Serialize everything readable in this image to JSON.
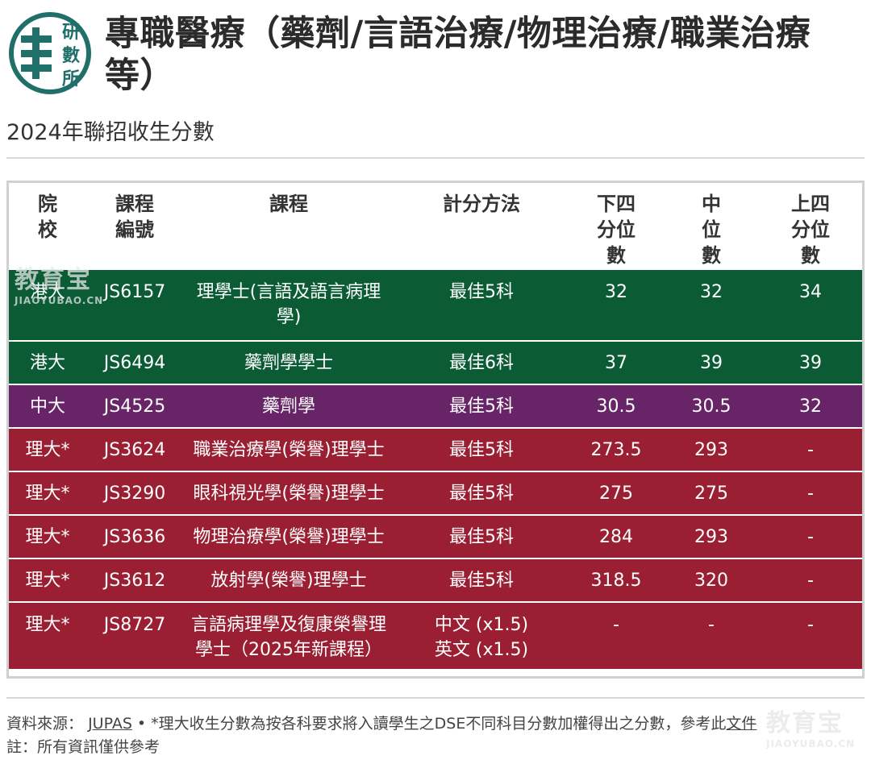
{
  "header": {
    "logo_text": [
      "研",
      "數",
      "所"
    ],
    "title": "專職醫療（藥劑/言語治療/物理治療/職業治療等）",
    "subtitle": "2024年聯招收生分數"
  },
  "table": {
    "columns": [
      "院\n校",
      "課程\n編號",
      "課程",
      "計分方法",
      "下四\n分位\n數",
      "中\n位\n數",
      "上四\n分位\n數"
    ],
    "rows": [
      {
        "theme": "green",
        "cells": [
          "港大",
          "JS6157",
          "理學士(言語及語言病理學)",
          "最佳5科",
          "32",
          "32",
          "34"
        ]
      },
      {
        "theme": "green",
        "cells": [
          "港大",
          "JS6494",
          "藥劑學學士",
          "最佳6科",
          "37",
          "39",
          "39"
        ]
      },
      {
        "theme": "purple",
        "cells": [
          "中大",
          "JS4525",
          "藥劑學",
          "最佳5科",
          "30.5",
          "30.5",
          "32"
        ]
      },
      {
        "theme": "red",
        "cells": [
          "理大*",
          "JS3624",
          "職業治療學(榮譽)理學士",
          "最佳5科",
          "273.5",
          "293",
          "-"
        ]
      },
      {
        "theme": "red",
        "cells": [
          "理大*",
          "JS3290",
          "眼科視光學(榮譽)理學士",
          "最佳5科",
          "275",
          "275",
          "-"
        ]
      },
      {
        "theme": "red",
        "cells": [
          "理大*",
          "JS3636",
          "物理治療學(榮譽)理學士",
          "最佳5科",
          "284",
          "293",
          "-"
        ]
      },
      {
        "theme": "red",
        "cells": [
          "理大*",
          "JS3612",
          "放射學(榮譽)理學士",
          "最佳5科",
          "318.5",
          "320",
          "-"
        ]
      },
      {
        "theme": "red",
        "cells": [
          "理大*",
          "JS8727",
          "言語病理學及復康榮譽理學士（2025年新課程）",
          "中文 (x1.5)\n英文 (x1.5)",
          "-",
          "-",
          "-"
        ]
      }
    ]
  },
  "footer": {
    "source_label": "資料來源：",
    "source_link": "JUPAS",
    "note_text": " • *理大收生分數為按各科要求將入讀學生之DSE不同科目分數加權得出之分數，參考此",
    "doc_link": "文件",
    "disclaimer": "註：所有資訊僅供參考"
  },
  "watermarks": {
    "big": "教育宝",
    "small": "JIAOYUBAO.CN"
  },
  "colors": {
    "green": "#0b5c34",
    "purple": "#672567",
    "red": "#9b1f33",
    "logo": "#1f6f6b"
  }
}
